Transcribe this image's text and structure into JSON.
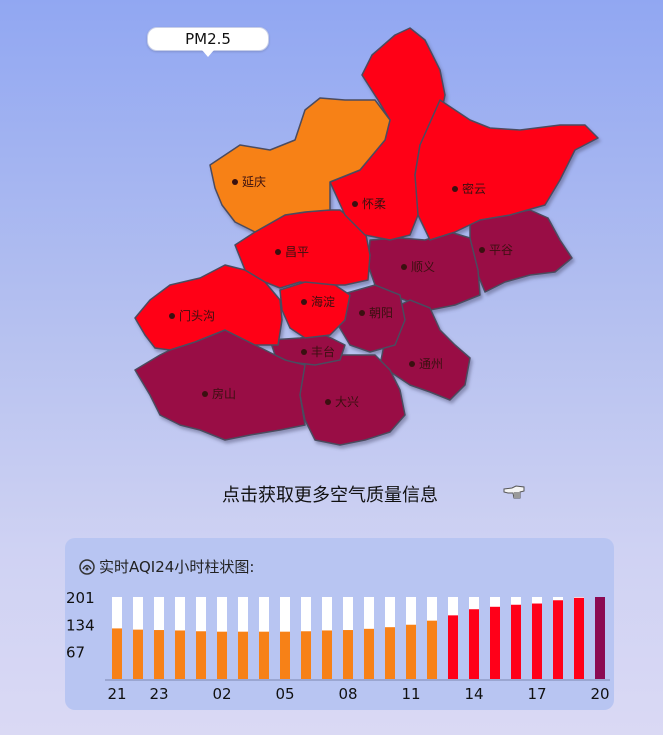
{
  "map": {
    "tab_label": "PM2.5",
    "districts": [
      {
        "name": "延庆",
        "color": "#f78117"
      },
      {
        "name": "怀柔",
        "color": "#ff0019"
      },
      {
        "name": "密云",
        "color": "#ff0019"
      },
      {
        "name": "昌平",
        "color": "#ff0019"
      },
      {
        "name": "顺义",
        "color": "#990a44"
      },
      {
        "name": "平谷",
        "color": "#990a44"
      },
      {
        "name": "门头沟",
        "color": "#ff0019"
      },
      {
        "name": "海淀",
        "color": "#ff0019"
      },
      {
        "name": "朝阳",
        "color": "#990a44"
      },
      {
        "name": "丰台",
        "color": "#990a44"
      },
      {
        "name": "房山",
        "color": "#990a44"
      },
      {
        "name": "大兴",
        "color": "#990a44"
      },
      {
        "name": "通州",
        "color": "#990a44"
      }
    ]
  },
  "more_info_link": "点击获取更多空气质量信息",
  "hand_icon": "pointing-hand-icon",
  "chart_data": {
    "type": "bar",
    "title": "实时AQI24小时柱状图:",
    "ylim": [
      0,
      201
    ],
    "yticks": [
      "201",
      "134",
      "67"
    ],
    "xtick_labels": [
      "21",
      "23",
      "02",
      "05",
      "08",
      "11",
      "14",
      "17",
      "20"
    ],
    "hours": [
      "21",
      "22",
      "23",
      "00",
      "01",
      "02",
      "03",
      "04",
      "05",
      "06",
      "07",
      "08",
      "09",
      "10",
      "11",
      "12",
      "13",
      "14",
      "15",
      "16",
      "17",
      "18",
      "19",
      "20"
    ],
    "values": [
      124,
      121,
      120,
      119,
      117,
      116,
      116,
      116,
      116,
      117,
      119,
      120,
      123,
      127,
      133,
      143,
      156,
      171,
      177,
      182,
      185,
      193,
      199,
      201
    ],
    "colors": {
      "orange": "#f78117",
      "red": "#ff0019",
      "purple": "#8b0a52",
      "background": "#ffffff"
    }
  }
}
